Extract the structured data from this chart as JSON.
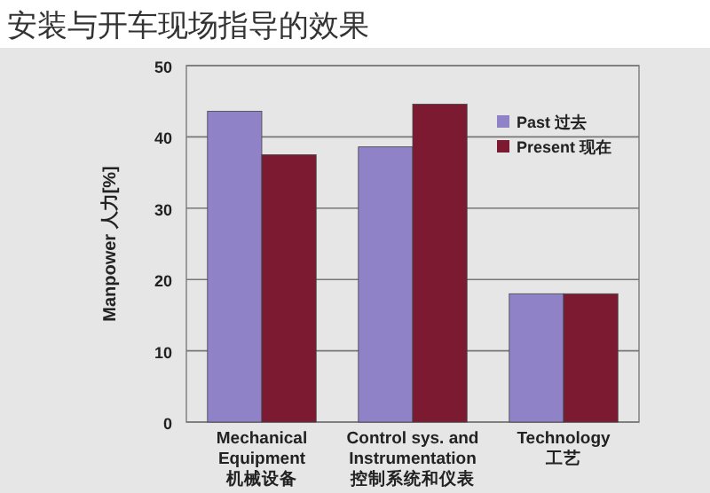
{
  "chart_data": {
    "type": "bar",
    "title": "安装与开车现场指导的效果",
    "ylabel": "Manpower 人力[%]",
    "categories": [
      "Mechanical\nEquipment\n机械设备",
      "Control sys. and\nInstrumentation\n控制系统和仪表",
      "Technology\n工艺"
    ],
    "series": [
      {
        "name": "Past 过去",
        "color": "#8f82c6",
        "values": [
          43.6,
          38.6,
          18
        ]
      },
      {
        "name": "Present 现在",
        "color": "#7b1a30",
        "values": [
          37.5,
          44.6,
          18
        ]
      }
    ],
    "ylim": [
      0,
      50
    ],
    "yticks": [
      0,
      10,
      20,
      30,
      40,
      50
    ],
    "grid": "y",
    "legend": "top right"
  }
}
